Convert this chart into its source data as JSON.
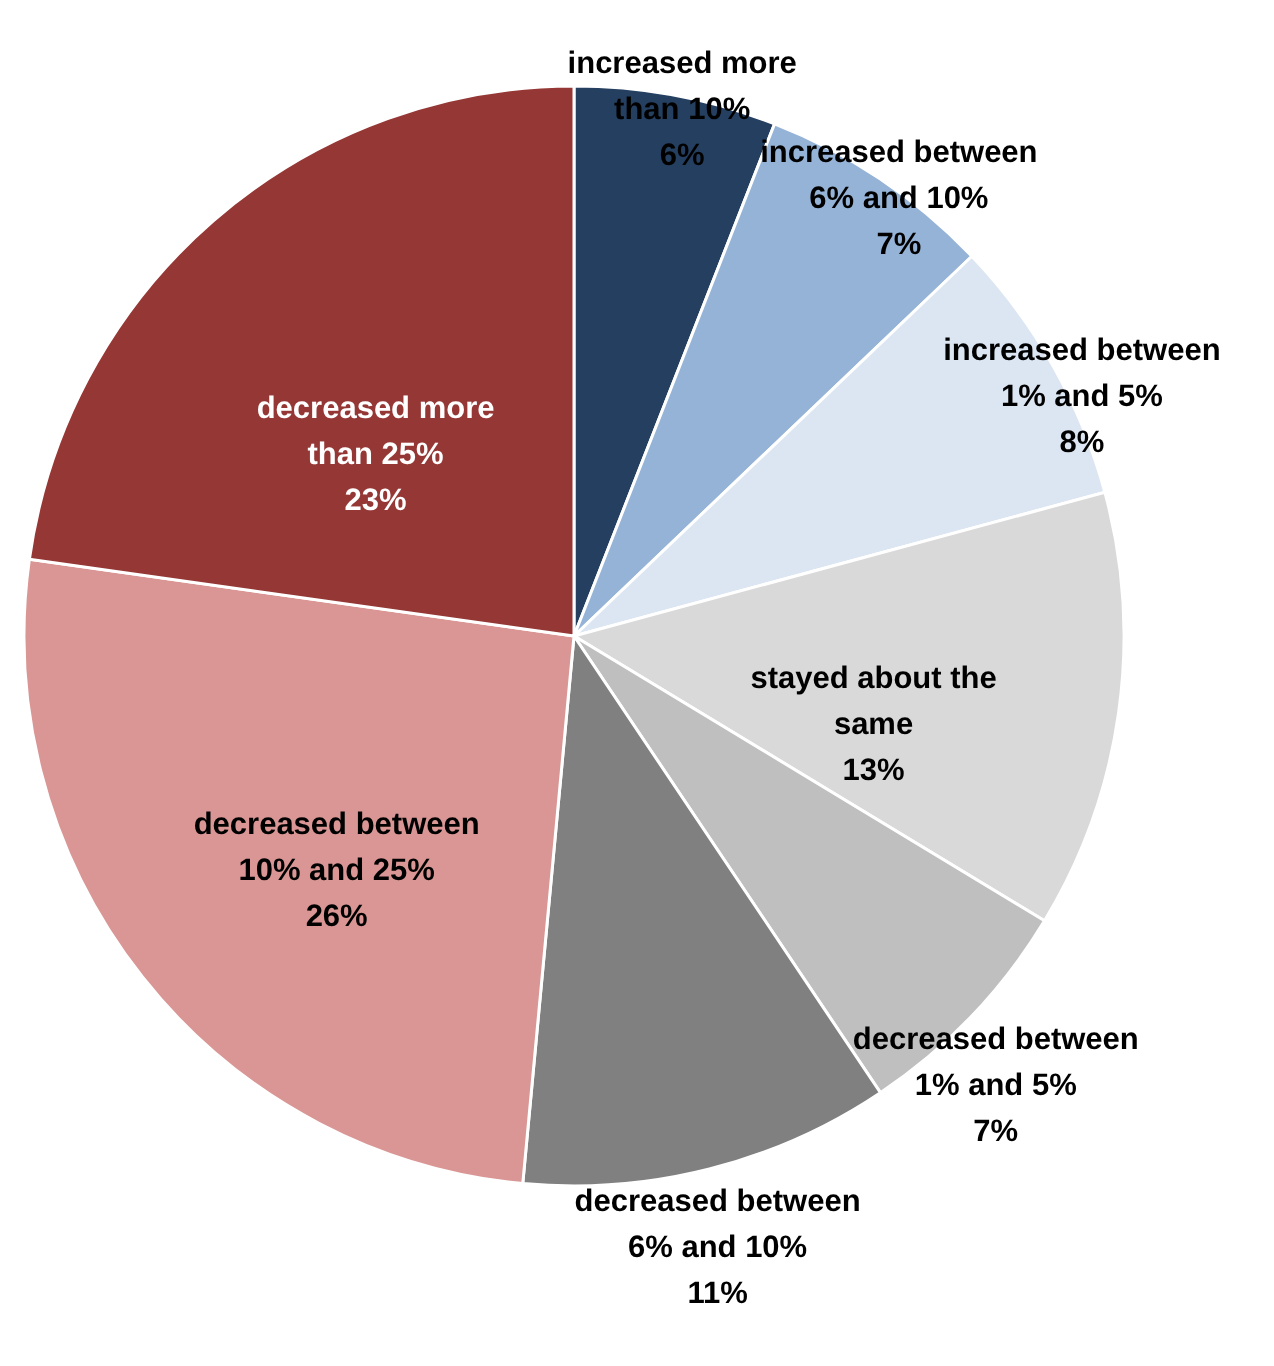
{
  "chart_data": {
    "type": "pie",
    "categories": [
      "increased more than 10%",
      "increased between 6% and 10%",
      "increased between 1% and 5%",
      "stayed about the same",
      "decreased between 1% and 5%",
      "decreased between 6% and 10%",
      "decreased between 10% and 25%",
      "decreased more than 25%"
    ],
    "values": [
      6,
      7,
      8,
      13,
      7,
      11,
      26,
      23
    ],
    "value_labels": [
      "6%",
      "7%",
      "8%",
      "13%",
      "7%",
      "11%",
      "26%",
      "23%"
    ],
    "colors": [
      "#243f60",
      "#95b3d7",
      "#dce6f2",
      "#d9d9d9",
      "#bfbfbf",
      "#808080",
      "#d99694",
      "#953735"
    ],
    "legend": false
  }
}
